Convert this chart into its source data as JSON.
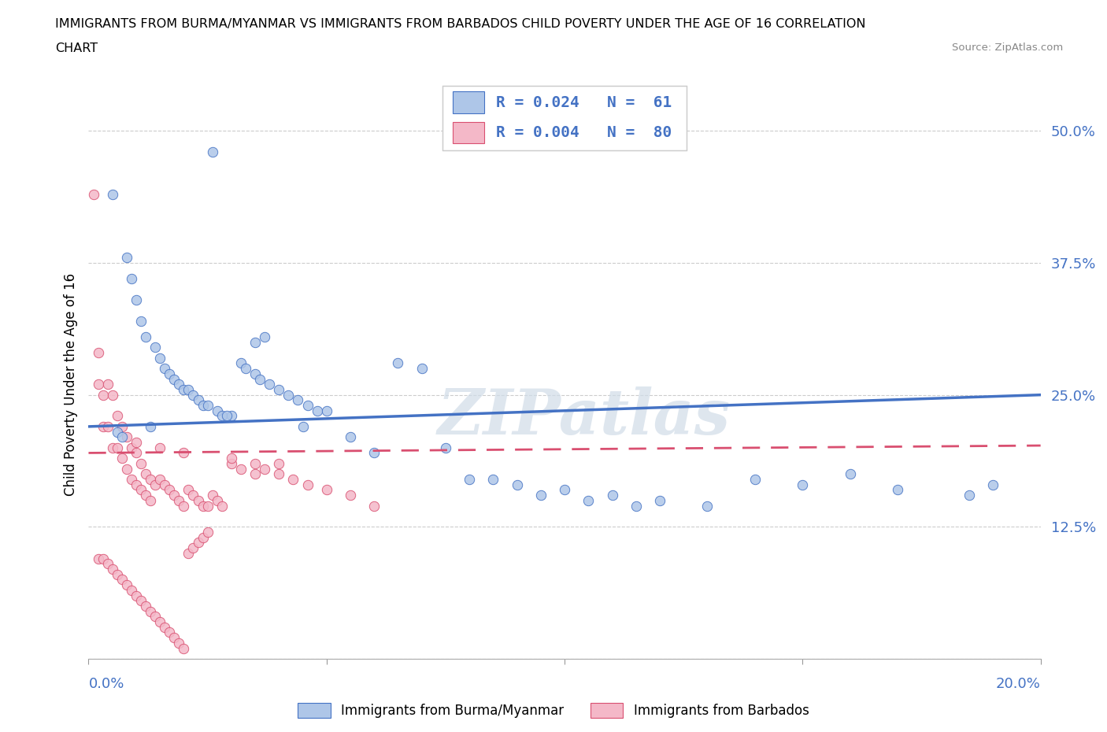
{
  "title_line1": "IMMIGRANTS FROM BURMA/MYANMAR VS IMMIGRANTS FROM BARBADOS CHILD POVERTY UNDER THE AGE OF 16 CORRELATION",
  "title_line2": "CHART",
  "source": "Source: ZipAtlas.com",
  "ylabel": "Child Poverty Under the Age of 16",
  "color_burma": "#aec6e8",
  "color_burma_line": "#4472c4",
  "color_barbados": "#f4b8c8",
  "color_barbados_line": "#d94f70",
  "watermark": "ZIPatlas",
  "xmin": 0.0,
  "xmax": 0.2,
  "ymin": 0.0,
  "ymax": 0.52,
  "burma_trend_y0": 0.22,
  "burma_trend_y1": 0.25,
  "barbados_trend_y0": 0.195,
  "barbados_trend_y1": 0.202,
  "burma_x": [
    0.026,
    0.005,
    0.008,
    0.009,
    0.01,
    0.011,
    0.012,
    0.014,
    0.015,
    0.016,
    0.017,
    0.018,
    0.019,
    0.02,
    0.021,
    0.022,
    0.023,
    0.024,
    0.025,
    0.027,
    0.028,
    0.03,
    0.032,
    0.033,
    0.035,
    0.036,
    0.038,
    0.04,
    0.042,
    0.044,
    0.046,
    0.048,
    0.055,
    0.065,
    0.07,
    0.075,
    0.08,
    0.085,
    0.09,
    0.1,
    0.11,
    0.12,
    0.13,
    0.14,
    0.15,
    0.16,
    0.17,
    0.185,
    0.19,
    0.06,
    0.05,
    0.095,
    0.105,
    0.115,
    0.045,
    0.035,
    0.037,
    0.029,
    0.013,
    0.006,
    0.007
  ],
  "burma_y": [
    0.48,
    0.44,
    0.38,
    0.36,
    0.34,
    0.32,
    0.305,
    0.295,
    0.285,
    0.275,
    0.27,
    0.265,
    0.26,
    0.255,
    0.255,
    0.25,
    0.245,
    0.24,
    0.24,
    0.235,
    0.23,
    0.23,
    0.28,
    0.275,
    0.27,
    0.265,
    0.26,
    0.255,
    0.25,
    0.245,
    0.24,
    0.235,
    0.21,
    0.28,
    0.275,
    0.2,
    0.17,
    0.17,
    0.165,
    0.16,
    0.155,
    0.15,
    0.145,
    0.17,
    0.165,
    0.175,
    0.16,
    0.155,
    0.165,
    0.195,
    0.235,
    0.155,
    0.15,
    0.145,
    0.22,
    0.3,
    0.305,
    0.23,
    0.22,
    0.215,
    0.21
  ],
  "barbados_x": [
    0.001,
    0.002,
    0.002,
    0.003,
    0.003,
    0.004,
    0.004,
    0.005,
    0.005,
    0.006,
    0.006,
    0.007,
    0.007,
    0.008,
    0.008,
    0.009,
    0.009,
    0.01,
    0.01,
    0.011,
    0.011,
    0.012,
    0.012,
    0.013,
    0.013,
    0.014,
    0.015,
    0.016,
    0.017,
    0.018,
    0.019,
    0.02,
    0.021,
    0.022,
    0.023,
    0.024,
    0.025,
    0.026,
    0.027,
    0.028,
    0.03,
    0.032,
    0.035,
    0.037,
    0.04,
    0.043,
    0.046,
    0.05,
    0.055,
    0.06,
    0.002,
    0.003,
    0.004,
    0.005,
    0.006,
    0.007,
    0.008,
    0.009,
    0.01,
    0.011,
    0.012,
    0.013,
    0.014,
    0.015,
    0.016,
    0.017,
    0.018,
    0.019,
    0.02,
    0.021,
    0.022,
    0.023,
    0.024,
    0.025,
    0.015,
    0.02,
    0.01,
    0.03,
    0.04,
    0.035
  ],
  "barbados_y": [
    0.44,
    0.29,
    0.26,
    0.25,
    0.22,
    0.26,
    0.22,
    0.25,
    0.2,
    0.23,
    0.2,
    0.22,
    0.19,
    0.21,
    0.18,
    0.2,
    0.17,
    0.195,
    0.165,
    0.185,
    0.16,
    0.175,
    0.155,
    0.17,
    0.15,
    0.165,
    0.17,
    0.165,
    0.16,
    0.155,
    0.15,
    0.145,
    0.16,
    0.155,
    0.15,
    0.145,
    0.145,
    0.155,
    0.15,
    0.145,
    0.185,
    0.18,
    0.185,
    0.18,
    0.175,
    0.17,
    0.165,
    0.16,
    0.155,
    0.145,
    0.095,
    0.095,
    0.09,
    0.085,
    0.08,
    0.075,
    0.07,
    0.065,
    0.06,
    0.055,
    0.05,
    0.045,
    0.04,
    0.035,
    0.03,
    0.025,
    0.02,
    0.015,
    0.01,
    0.1,
    0.105,
    0.11,
    0.115,
    0.12,
    0.2,
    0.195,
    0.205,
    0.19,
    0.185,
    0.175
  ]
}
